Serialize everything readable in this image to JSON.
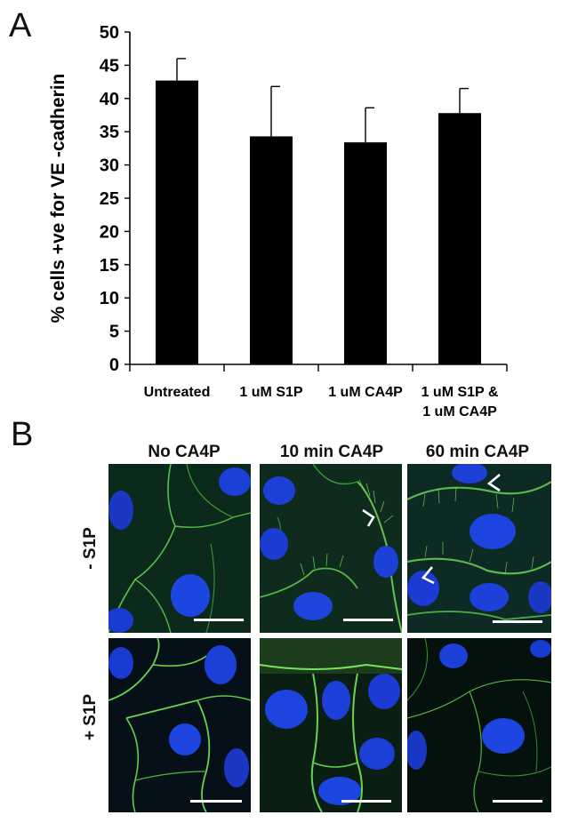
{
  "panel_a_label": "A",
  "panel_b_label": "B",
  "chart_data": {
    "type": "bar",
    "title": "",
    "xlabel": "",
    "ylabel": "% cells +ve for VE -cadherin",
    "categories": [
      [
        "Untreated"
      ],
      [
        "1 uM S1P"
      ],
      [
        "1 uM CA4P"
      ],
      [
        "1 uM S1P &",
        "1 uM CA4P"
      ]
    ],
    "values": [
      42.7,
      34.3,
      33.4,
      37.8
    ],
    "errors": [
      3.3,
      7.5,
      5.2,
      3.7
    ],
    "ylim": [
      0,
      50
    ],
    "yticks": [
      0,
      5,
      10,
      15,
      20,
      25,
      30,
      35,
      40,
      45,
      50
    ],
    "grid": false,
    "bar_color": "#000000"
  },
  "panel_b": {
    "columns": [
      "No CA4P",
      "10 min CA4P",
      "60 min CA4P"
    ],
    "rows": [
      "- S1P",
      "+ S1P"
    ]
  }
}
